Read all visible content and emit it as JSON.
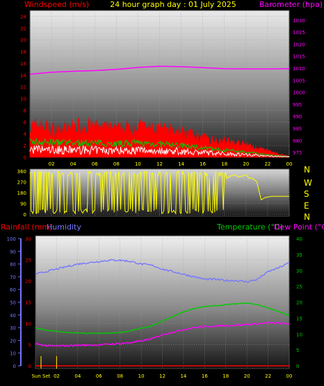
{
  "header": {
    "left_label": "Windspeed (m/s)",
    "center_label": "24 hour graph day : 01 July 2025",
    "right_label": "Barometer (hpa)"
  },
  "compass": [
    "N",
    "W",
    "S",
    "E",
    "N"
  ],
  "bottom_header": {
    "rain_label": "Rainfall (mm)",
    "humidity_label": "Humidity",
    "temp_label": "Temperature (°C)",
    "dew_label": "Dew Point (°C)"
  },
  "colors": {
    "wind": "#ff0000",
    "gust": "#ffffff",
    "avg_wind": "#00cc00",
    "barometer": "#ff00ff",
    "direction": "#ffff00",
    "rain": "#ff0000",
    "humidity": "#7777ff",
    "temperature": "#00cc00",
    "dewpoint": "#ff00ff",
    "yellow_text": "#ffff00"
  },
  "chart_data": [
    {
      "type": "line",
      "panel": "wind",
      "x_ticks": [
        "02",
        "04",
        "06",
        "08",
        "10",
        "12",
        "14",
        "16",
        "18",
        "20",
        "22",
        "00"
      ],
      "y_left_ticks": [
        "0",
        "2",
        "4",
        "6",
        "8",
        "10",
        "12",
        "14",
        "16",
        "18",
        "20",
        "22",
        "24"
      ],
      "y_right_ticks": [
        "975",
        "980",
        "985",
        "990",
        "995",
        "1000",
        "1005",
        "1010",
        "1015",
        "1020",
        "1025",
        "1030"
      ],
      "ylim_left": [
        0,
        25
      ],
      "ylim_right": [
        973,
        1034
      ],
      "xlim": [
        0,
        24
      ],
      "series": [
        {
          "role": "gust",
          "x": [
            0,
            1,
            2,
            3,
            4,
            5,
            6,
            7,
            8,
            9,
            10,
            11,
            12,
            13,
            14,
            15,
            16,
            17,
            18,
            19,
            20,
            21,
            22,
            23,
            24
          ],
          "values": [
            5.5,
            5.8,
            5.2,
            4.8,
            5.5,
            5.8,
            5.5,
            5.2,
            5.0,
            5.3,
            5.6,
            5.2,
            5.0,
            4.8,
            4.5,
            4.0,
            3.5,
            3.2,
            3.0,
            2.6,
            2.3,
            1.6,
            1.2,
            0.6,
            0.2
          ]
        },
        {
          "role": "average",
          "x": [
            0,
            2,
            4,
            6,
            8,
            10,
            12,
            14,
            16,
            18,
            20,
            22,
            24
          ],
          "values": [
            2.6,
            2.5,
            2.4,
            2.4,
            2.3,
            2.4,
            2.2,
            2.0,
            1.6,
            1.2,
            0.9,
            0.4,
            0.1
          ]
        },
        {
          "role": "pressure",
          "x": [
            0,
            2,
            4,
            6,
            8,
            10,
            12,
            14,
            16,
            18,
            20,
            22,
            24
          ],
          "values": [
            1007.5,
            1008.3,
            1008.7,
            1009.0,
            1009.5,
            1010.3,
            1010.8,
            1010.6,
            1010.2,
            1009.8,
            1009.7,
            1009.7,
            1009.8
          ]
        }
      ]
    },
    {
      "type": "scatter",
      "panel": "direction",
      "y_ticks": [
        "360",
        "270",
        "180",
        "90",
        "0"
      ],
      "ylim": [
        0,
        360
      ],
      "xlim": [
        0,
        24
      ],
      "series": [
        {
          "role": "direction",
          "x": [
            0,
            0.2,
            0.5,
            0.8,
            1.0,
            1.3,
            1.6,
            2.0,
            2.3,
            2.7,
            3.0,
            3.4,
            3.8,
            4.2,
            4.6,
            5.0,
            5.4,
            5.8,
            6.2,
            6.6,
            7.0,
            7.4,
            7.8,
            8.2,
            8.6,
            9.0,
            9.4,
            9.8,
            10.2,
            10.6,
            11.0,
            11.4,
            11.8,
            12.2,
            12.6,
            13.0,
            13.4,
            13.8,
            14.2,
            14.6,
            15.0,
            15.4,
            15.8,
            16.2,
            16.6,
            17.0,
            17.4,
            17.8,
            18.2,
            18.6,
            19.0,
            19.3,
            19.7,
            20.0,
            20.3,
            20.6,
            21.0,
            21.4,
            21.8,
            22.4,
            23.0,
            24.0
          ],
          "values": [
            350,
            20,
            340,
            10,
            350,
            355,
            30,
            340,
            10,
            355,
            340,
            20,
            350,
            5,
            345,
            30,
            355,
            10,
            340,
            20,
            350,
            345,
            15,
            355,
            330,
            20,
            340,
            10,
            350,
            355,
            25,
            340,
            330,
            5,
            350,
            345,
            20,
            355,
            340,
            10,
            350,
            30,
            340,
            355,
            300,
            330,
            320,
            340,
            300,
            320,
            330,
            310,
            320,
            330,
            300,
            300,
            270,
            120,
            140,
            150,
            150,
            150
          ]
        }
      ]
    },
    {
      "type": "line",
      "panel": "temperature",
      "x_ticks": [
        "Sun Set",
        "02",
        "04",
        "06",
        "08",
        "10",
        "12",
        "14",
        "16",
        "18",
        "20",
        "22",
        "00"
      ],
      "y_left_ticks": [
        "0",
        "10",
        "20",
        "30",
        "40",
        "50",
        "60",
        "70",
        "80",
        "90",
        "100"
      ],
      "y_mid_ticks": [
        "0",
        "5",
        "10",
        "15",
        "20",
        "25",
        "30"
      ],
      "y_right_ticks": [
        "0",
        "5",
        "10",
        "15",
        "20",
        "25",
        "30",
        "35",
        "40"
      ],
      "ylim_humidity": [
        0,
        100
      ],
      "ylim_rain": [
        0,
        30
      ],
      "ylim_temp": [
        0,
        40
      ],
      "xlim": [
        0,
        24
      ],
      "series": [
        {
          "name": "Humidity",
          "role": "humidity",
          "x": [
            0,
            1,
            2,
            3,
            4,
            5,
            6,
            7,
            8,
            9,
            10,
            11,
            12,
            13,
            14,
            15,
            16,
            17,
            18,
            19,
            20,
            21,
            22,
            23,
            24
          ],
          "values": [
            72,
            74,
            76,
            78,
            80,
            81,
            82,
            83,
            83,
            82,
            80,
            79,
            76,
            74,
            72,
            70,
            68,
            68,
            67,
            67,
            66,
            68,
            74,
            77,
            81
          ]
        },
        {
          "name": "Temperature (°C)",
          "role": "temperature",
          "x": [
            0,
            1,
            2,
            3,
            4,
            5,
            6,
            7,
            8,
            9,
            10,
            11,
            12,
            13,
            14,
            15,
            16,
            17,
            18,
            19,
            20,
            21,
            22,
            23,
            24
          ],
          "values": [
            12.0,
            11.2,
            10.8,
            10.5,
            10.3,
            10.2,
            10.2,
            10.3,
            10.5,
            11.0,
            11.8,
            12.5,
            14.0,
            15.5,
            17.0,
            18.0,
            18.6,
            18.9,
            19.2,
            19.5,
            19.8,
            19.2,
            18.2,
            17.0,
            15.8
          ]
        },
        {
          "name": "Dew Point (°C)",
          "role": "dewpoint",
          "x": [
            0,
            1,
            2,
            3,
            4,
            5,
            6,
            7,
            8,
            9,
            10,
            11,
            12,
            13,
            14,
            15,
            16,
            17,
            18,
            19,
            20,
            21,
            22,
            23,
            24
          ],
          "values": [
            7.0,
            6.3,
            6.2,
            6.3,
            6.5,
            6.5,
            6.6,
            6.8,
            7.0,
            7.3,
            7.8,
            8.5,
            9.8,
            10.6,
            11.4,
            12.0,
            12.3,
            12.5,
            12.6,
            12.8,
            13.0,
            13.2,
            13.5,
            13.4,
            13.2
          ]
        },
        {
          "name": "Rainfall (mm)",
          "role": "rain",
          "x": [
            0,
            24
          ],
          "values": [
            0,
            0
          ]
        }
      ]
    }
  ]
}
